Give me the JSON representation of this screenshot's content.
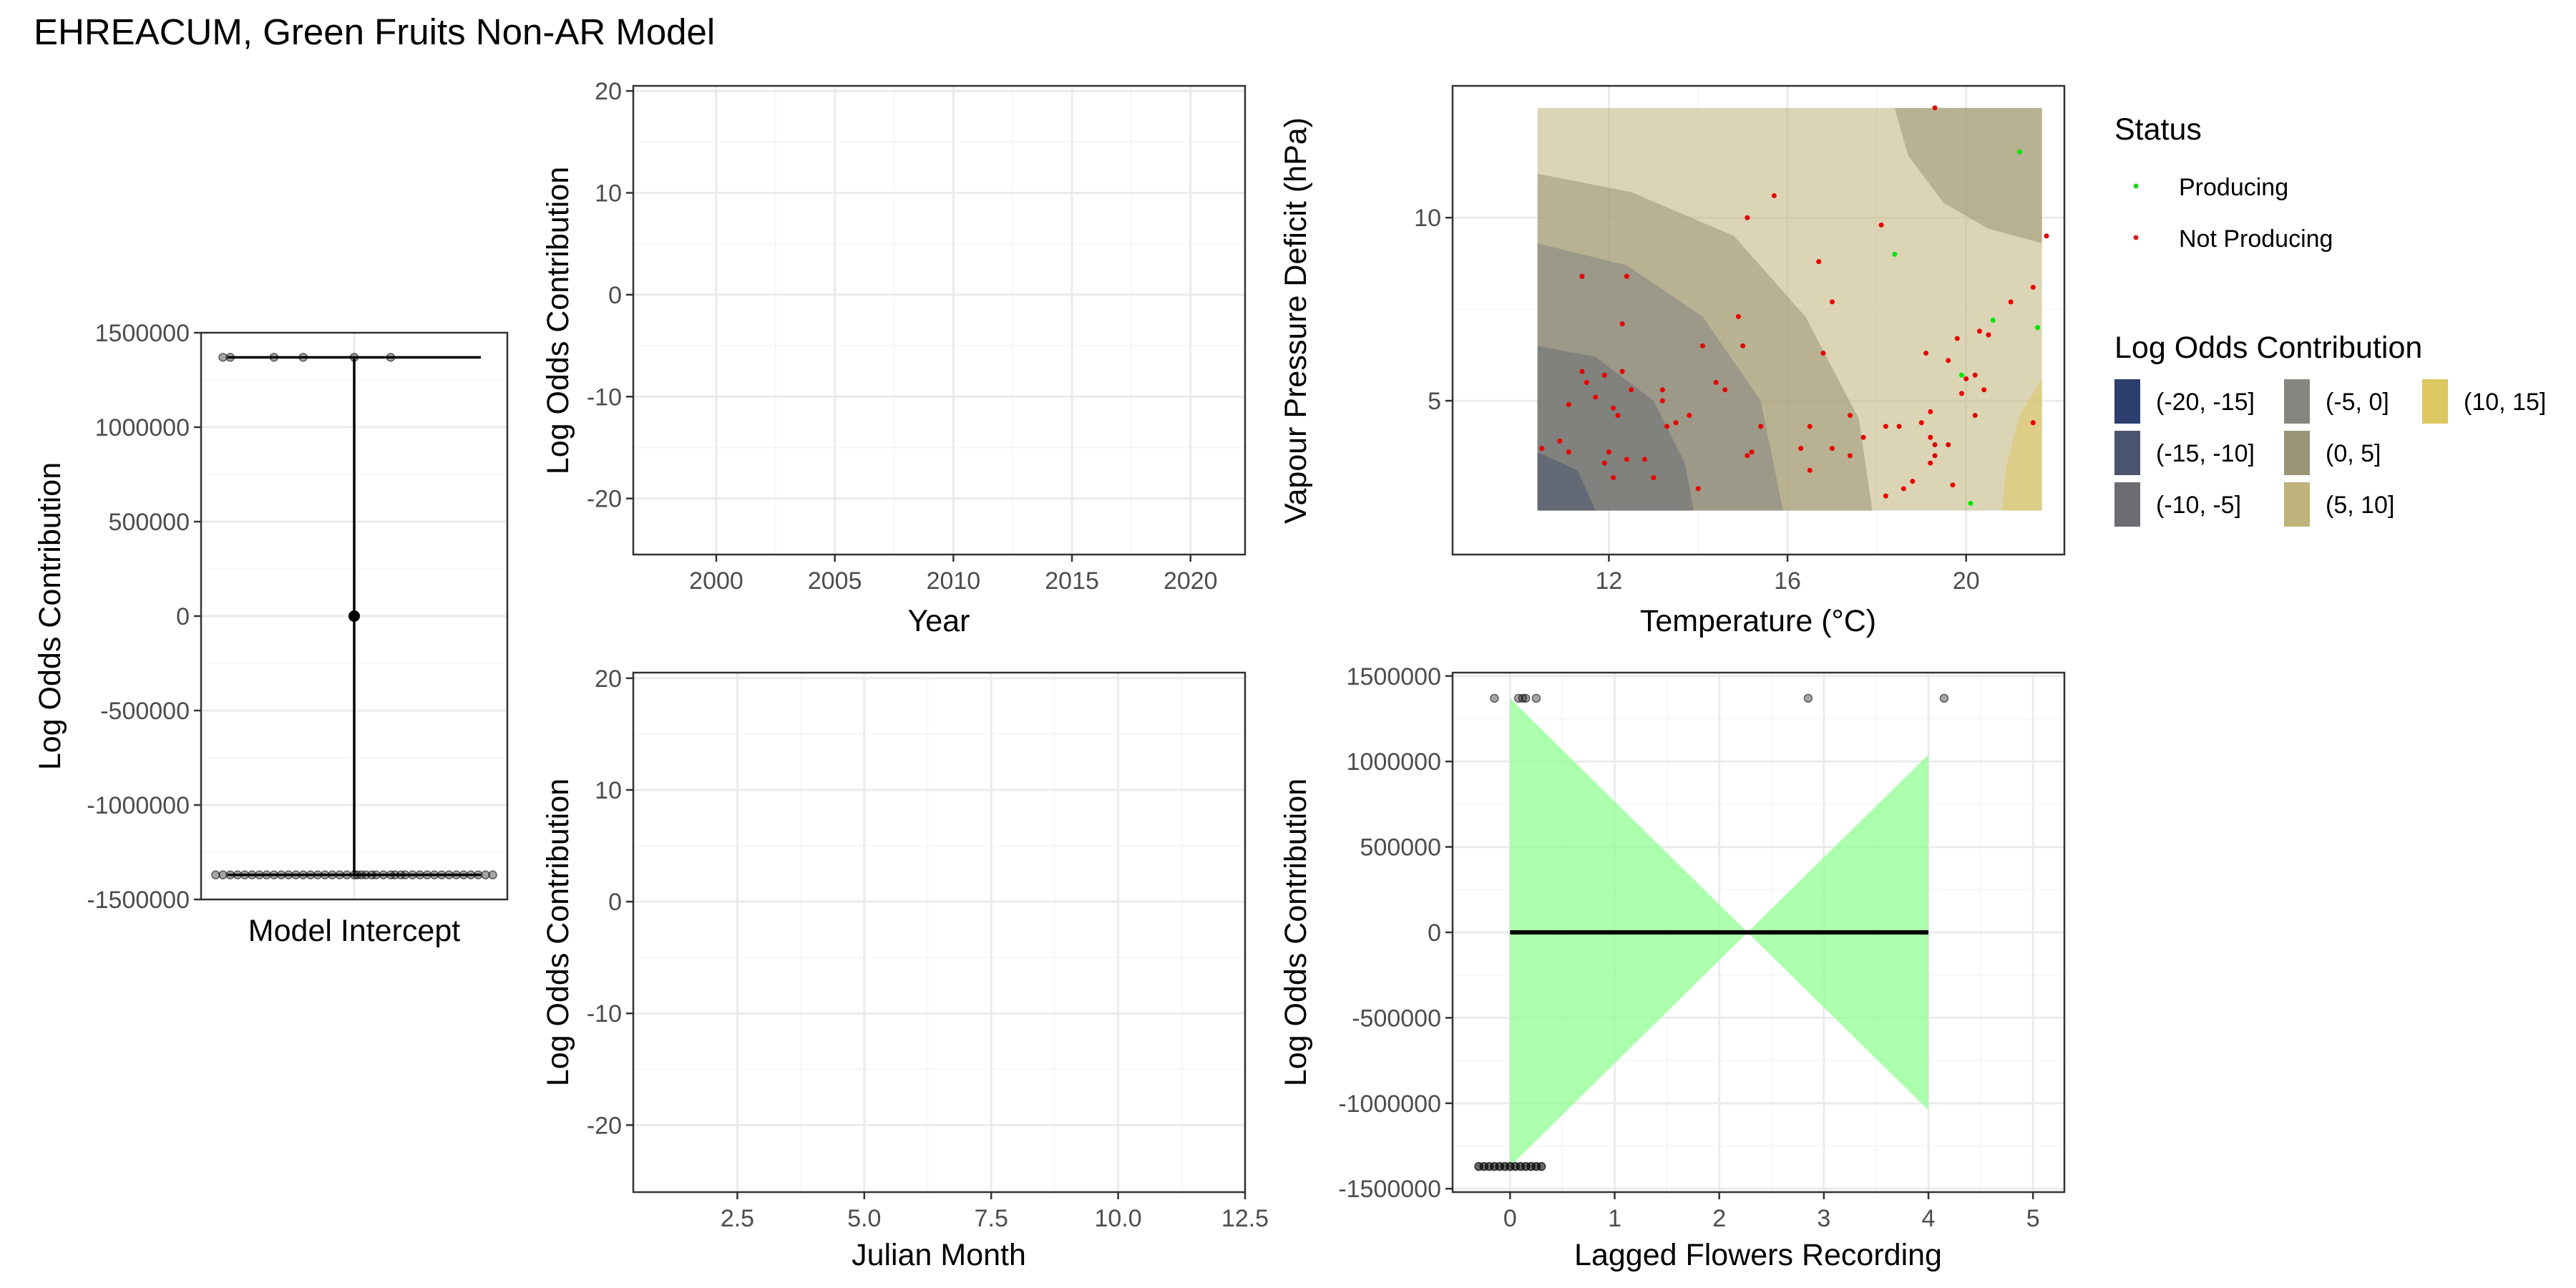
{
  "figure": {
    "title": "EHREACUM, Green Fruits Non-AR Model",
    "colors": {
      "grid_major": "#EBEBEB",
      "grid_minor": "#F5F5F5",
      "panel_border": "#333333",
      "producing": "#00E600",
      "not_producing": "#E60000",
      "ribbon": "#90FF90"
    }
  },
  "legend": {
    "status_title": "Status",
    "status_items": [
      {
        "label": "Producing",
        "color": "#1ED41E"
      },
      {
        "label": "Not Producing",
        "color": "#D41E1E"
      }
    ],
    "fill_title": "Log Odds Contribution",
    "fill_items": [
      {
        "label": "(-20, -15]",
        "color": "#2B3E6E"
      },
      {
        "label": "(-15, -10]",
        "color": "#4B5570"
      },
      {
        "label": "(-10, -5]",
        "color": "#6B6D73"
      },
      {
        "label": "(-5, 0]",
        "color": "#858581"
      },
      {
        "label": "(0, 5]",
        "color": "#9A9577"
      },
      {
        "label": "(5, 10]",
        "color": "#BEB37A"
      },
      {
        "label": "(10, 15]",
        "color": "#DCC760"
      }
    ]
  },
  "chart_data": [
    {
      "type": "scatter",
      "panel": "intercept",
      "xlabel": "Model Intercept",
      "ylabel": "Log Odds Contribution",
      "ylim": [
        -1500000,
        1500000
      ],
      "yticks": [
        -1500000,
        -1000000,
        -500000,
        0,
        500000,
        1000000,
        1500000
      ],
      "ytick_labels": [
        "-1500000",
        "-1000000",
        "-500000",
        "0",
        "500000",
        "1000000",
        "1500000"
      ],
      "estimate": 0,
      "interval": [
        -1370000,
        1370000
      ],
      "points_upper_y": 1370000,
      "points_upper_x": [
        -0.9,
        -0.85,
        -0.55,
        -0.35,
        0,
        0.25
      ],
      "points_lower_y": -1370000,
      "points_lower_x": [
        -0.95,
        -0.9,
        -0.85,
        -0.8,
        -0.75,
        -0.7,
        -0.65,
        -0.6,
        -0.55,
        -0.5,
        -0.45,
        -0.4,
        -0.35,
        -0.3,
        -0.25,
        -0.2,
        -0.15,
        -0.1,
        -0.05,
        0,
        0.02,
        0.05,
        0.08,
        0.12,
        0.15,
        0.2,
        0.25,
        0.28,
        0.32,
        0.35,
        0.4,
        0.45,
        0.5,
        0.55,
        0.6,
        0.65,
        0.7,
        0.75,
        0.8,
        0.85,
        0.9,
        0.95
      ],
      "grid": true
    },
    {
      "type": "line",
      "panel": "year",
      "xlabel": "Year",
      "ylabel": "Log Odds Contribution",
      "xlim": [
        1996.5,
        2022.3
      ],
      "xticks": [
        2000,
        2005,
        2010,
        2015,
        2020
      ],
      "ylim": [
        -25.5,
        20.5
      ],
      "yticks": [
        -20,
        -10,
        0,
        10,
        20
      ],
      "series": [],
      "grid": true
    },
    {
      "type": "line",
      "panel": "julian_month",
      "xlabel": "Julian Month",
      "ylabel": "Log Odds Contribution",
      "xlim": [
        0.45,
        12.5
      ],
      "xticks": [
        2.5,
        5.0,
        7.5,
        10.0,
        12.5
      ],
      "xtick_labels": [
        "2.5",
        "5.0",
        "7.5",
        "10.0",
        "12.5"
      ],
      "ylim": [
        -26,
        20.5
      ],
      "yticks": [
        -20,
        -10,
        0,
        10,
        20
      ],
      "series": [],
      "grid": true
    },
    {
      "type": "heatmap",
      "panel": "temperature_vpd",
      "xlabel": "Temperature (°C)",
      "ylabel": "Vapour Pressure Deficit (hPa)",
      "xlim": [
        8.5,
        22.2
      ],
      "xticks": [
        12,
        16,
        20
      ],
      "ylim": [
        0.8,
        13.6
      ],
      "yticks": [
        5,
        10
      ],
      "grid_extent": {
        "x": [
          10.4,
          21.7
        ],
        "y": [
          2.0,
          13.0
        ]
      },
      "contour_levels": [
        "(-20, -15]",
        "(-15, -10]",
        "(-10, -5]",
        "(-5, 0]",
        "(0, 5]",
        "(5, 10]",
        "(10, 15]"
      ],
      "producing": [
        [
          21.2,
          11.8
        ],
        [
          18.4,
          9.0
        ],
        [
          20.6,
          7.2
        ],
        [
          21.6,
          7.0
        ],
        [
          19.9,
          5.7
        ],
        [
          20.1,
          2.2
        ]
      ],
      "not_producing": [
        [
          19.3,
          13.0
        ],
        [
          15.7,
          10.6
        ],
        [
          15.1,
          10.0
        ],
        [
          18.1,
          9.8
        ],
        [
          21.8,
          9.5
        ],
        [
          16.7,
          8.8
        ],
        [
          11.4,
          8.4
        ],
        [
          12.4,
          8.4
        ],
        [
          21.5,
          8.1
        ],
        [
          17.0,
          7.7
        ],
        [
          21.0,
          7.7
        ],
        [
          14.9,
          7.3
        ],
        [
          12.3,
          7.1
        ],
        [
          20.3,
          6.9
        ],
        [
          20.5,
          6.8
        ],
        [
          19.8,
          6.7
        ],
        [
          15.0,
          6.5
        ],
        [
          14.1,
          6.5
        ],
        [
          16.8,
          6.3
        ],
        [
          19.1,
          6.3
        ],
        [
          19.6,
          6.1
        ],
        [
          11.4,
          5.8
        ],
        [
          12.3,
          5.8
        ],
        [
          11.9,
          5.7
        ],
        [
          20.2,
          5.7
        ],
        [
          20.0,
          5.6
        ],
        [
          11.5,
          5.5
        ],
        [
          14.4,
          5.5
        ],
        [
          14.6,
          5.3
        ],
        [
          13.2,
          5.3
        ],
        [
          12.5,
          5.3
        ],
        [
          20.4,
          5.3
        ],
        [
          19.9,
          5.2
        ],
        [
          11.7,
          5.1
        ],
        [
          13.2,
          5.0
        ],
        [
          11.1,
          4.9
        ],
        [
          12.1,
          4.8
        ],
        [
          19.2,
          4.7
        ],
        [
          12.2,
          4.6
        ],
        [
          20.2,
          4.6
        ],
        [
          17.4,
          4.6
        ],
        [
          13.8,
          4.6
        ],
        [
          13.5,
          4.4
        ],
        [
          13.3,
          4.3
        ],
        [
          19.0,
          4.4
        ],
        [
          18.2,
          4.3
        ],
        [
          15.4,
          4.3
        ],
        [
          18.5,
          4.3
        ],
        [
          16.5,
          4.3
        ],
        [
          19.2,
          4.0
        ],
        [
          17.7,
          4.0
        ],
        [
          10.9,
          3.9
        ],
        [
          19.3,
          3.8
        ],
        [
          10.5,
          3.7
        ],
        [
          16.3,
          3.7
        ],
        [
          17.0,
          3.7
        ],
        [
          19.6,
          3.8
        ],
        [
          12.0,
          3.6
        ],
        [
          11.1,
          3.6
        ],
        [
          15.2,
          3.6
        ],
        [
          15.1,
          3.5
        ],
        [
          17.4,
          3.5
        ],
        [
          12.4,
          3.4
        ],
        [
          19.2,
          3.3
        ],
        [
          12.8,
          3.4
        ],
        [
          11.9,
          3.3
        ],
        [
          19.3,
          3.5
        ],
        [
          16.5,
          3.1
        ],
        [
          12.1,
          2.9
        ],
        [
          13.0,
          2.9
        ],
        [
          18.8,
          2.8
        ],
        [
          18.6,
          2.6
        ],
        [
          14.0,
          2.6
        ],
        [
          19.7,
          2.7
        ],
        [
          18.2,
          2.4
        ],
        [
          21.5,
          4.4
        ]
      ],
      "grid": true
    },
    {
      "type": "line",
      "panel": "lagged_flowers",
      "xlabel": "Lagged Flowers Recording",
      "ylabel": "Log Odds Contribution",
      "xlim": [
        -0.55,
        5.3
      ],
      "xticks": [
        0,
        1,
        2,
        3,
        4,
        5
      ],
      "ylim": [
        -1520000,
        1520000
      ],
      "yticks": [
        -1500000,
        -1000000,
        -500000,
        0,
        500000,
        1000000,
        1500000
      ],
      "ytick_labels": [
        "-1500000",
        "-1000000",
        "-500000",
        "0",
        "500000",
        "1000000",
        "1500000"
      ],
      "fit": {
        "x": [
          0,
          4
        ],
        "y": [
          0,
          0
        ]
      },
      "ribbon": {
        "x": [
          0,
          2.27,
          4
        ],
        "upper": [
          1370000,
          0,
          1040000
        ],
        "lower": [
          -1370000,
          0,
          -1040000
        ]
      },
      "points_upper_y": 1370000,
      "points_upper_x": [
        -0.15,
        0.08,
        0.12,
        0.15,
        0.25,
        2.85,
        4.15
      ],
      "points_lower_y": -1370000,
      "points_lower_x": [
        -0.3,
        -0.25,
        -0.2,
        -0.15,
        -0.1,
        -0.05,
        0,
        0.05,
        0.1,
        0.15,
        0.2,
        0.25,
        0.3
      ],
      "grid": true
    }
  ]
}
